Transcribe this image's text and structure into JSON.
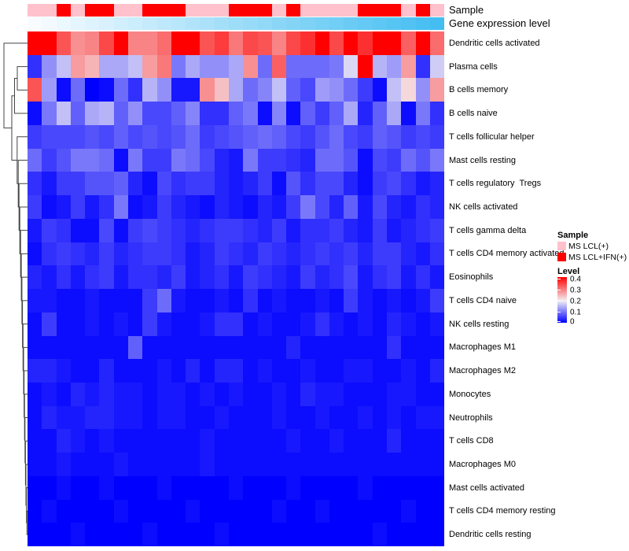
{
  "annotations": {
    "sample_label": "Sample",
    "gene_label": "Gene expression level"
  },
  "legend": {
    "sample": {
      "title": "Sample",
      "items": [
        {
          "label": "MS LCL(+)",
          "color": "#FFC1CC"
        },
        {
          "label": "MS LCL+IFN(+)",
          "color": "#FF0000"
        }
      ]
    },
    "level": {
      "title": "Level",
      "ticks": [
        "0.4",
        "0.3",
        "0.2",
        "0.1",
        "0"
      ]
    }
  },
  "colors": {
    "heatmap_low": "#0000FF",
    "heatmap_mid": "#F3F0F4",
    "heatmap_high": "#FF0000",
    "annotation_pink": "#FFC1CC",
    "annotation_red": "#FF0000",
    "gene_low": "#F8FCFF",
    "gene_high": "#44BEF1",
    "dendrogram": "#444444"
  },
  "chart_data": {
    "type": "heatmap",
    "title": "",
    "n_columns": 29,
    "rows": [
      "Dendritic cells activated",
      "Plasma cells",
      "B cells memory",
      "B cells naive",
      "T cells follicular helper",
      "Mast cells resting",
      "T cells regulatory  Tregs",
      "NK cells activated",
      "T cells gamma delta",
      "T cells CD4 memory activated",
      "Eosinophils",
      "T cells CD4 naive",
      "NK cells resting",
      "Macrophages M1",
      "Macrophages M2",
      "Monocytes",
      "Neutrophils",
      "T cells CD8",
      "Macrophages M0",
      "Mast cells activated",
      "T cells CD4 memory resting",
      "Dendritic cells resting"
    ],
    "column_annotations": {
      "sample_groups": {
        "0": "MS LCL(+)",
        "1": "MS LCL+IFN(+)"
      },
      "sample": [
        0,
        0,
        1,
        0,
        1,
        1,
        0,
        0,
        1,
        1,
        1,
        0,
        0,
        0,
        1,
        1,
        1,
        0,
        1,
        0,
        0,
        0,
        0,
        1,
        1,
        1,
        0,
        1,
        0
      ],
      "gene_expression_level": {
        "type": "continuous",
        "description": "increases linearly from left (low, near-white) to right (high, sky blue)",
        "range": [
          0,
          1
        ]
      }
    },
    "colormap": {
      "type": "diverging blue-white-red",
      "value_at_blue": 0,
      "value_at_white": 0.2,
      "value_at_red": 0.4,
      "legend_position": "right",
      "grid": false,
      "row_dendrogram": "left"
    },
    "values": [
      [
        0.44,
        0.42,
        0.33,
        0.28,
        0.29,
        0.34,
        0.43,
        0.29,
        0.29,
        0.31,
        0.44,
        0.42,
        0.33,
        0.35,
        0.3,
        0.34,
        0.33,
        0.29,
        0.34,
        0.36,
        0.42,
        0.34,
        0.42,
        0.36,
        0.43,
        0.42,
        0.32,
        0.44,
        0.31
      ],
      [
        0.04,
        0.12,
        0.16,
        0.27,
        0.25,
        0.14,
        0.14,
        0.16,
        0.27,
        0.3,
        0.1,
        0.14,
        0.12,
        0.12,
        0.14,
        0.28,
        0.09,
        0.32,
        0.09,
        0.09,
        0.09,
        0.1,
        0.18,
        0.43,
        0.15,
        0.13,
        0.27,
        0.04,
        0.17
      ],
      [
        0.33,
        0.13,
        0.01,
        0.09,
        0.0,
        0.01,
        0.09,
        0.04,
        0.15,
        0.12,
        0.02,
        0.02,
        0.28,
        0.24,
        0.14,
        0.09,
        0.11,
        0.16,
        0.08,
        0.06,
        0.13,
        0.12,
        0.09,
        0.05,
        0.01,
        0.16,
        0.22,
        0.12,
        0.27
      ],
      [
        0.01,
        0.1,
        0.16,
        0.08,
        0.14,
        0.15,
        0.08,
        0.12,
        0.06,
        0.06,
        0.08,
        0.11,
        0.04,
        0.04,
        0.08,
        0.1,
        0.01,
        0.11,
        0.01,
        0.08,
        0.05,
        0.08,
        0.14,
        0.03,
        0.08,
        0.14,
        0.01,
        0.1,
        0.04
      ],
      [
        0.05,
        0.06,
        0.06,
        0.06,
        0.07,
        0.06,
        0.08,
        0.06,
        0.07,
        0.06,
        0.07,
        0.09,
        0.05,
        0.06,
        0.07,
        0.08,
        0.09,
        0.08,
        0.06,
        0.05,
        0.07,
        0.09,
        0.06,
        0.05,
        0.08,
        0.07,
        0.05,
        0.06,
        0.05
      ],
      [
        0.09,
        0.05,
        0.07,
        0.1,
        0.1,
        0.09,
        0.01,
        0.1,
        0.05,
        0.05,
        0.1,
        0.09,
        0.06,
        0.03,
        0.02,
        0.1,
        0.05,
        0.05,
        0.04,
        0.03,
        0.09,
        0.09,
        0.07,
        0.01,
        0.06,
        0.05,
        0.09,
        0.07,
        0.1
      ],
      [
        0.04,
        0.02,
        0.05,
        0.05,
        0.07,
        0.07,
        0.08,
        0.03,
        0.01,
        0.06,
        0.04,
        0.05,
        0.05,
        0.03,
        0.02,
        0.03,
        0.05,
        0.01,
        0.07,
        0.04,
        0.06,
        0.06,
        0.03,
        0.01,
        0.05,
        0.06,
        0.04,
        0.02,
        0.03
      ],
      [
        0.05,
        0.01,
        0.02,
        0.05,
        0.02,
        0.04,
        0.1,
        0.01,
        0.02,
        0.05,
        0.03,
        0.02,
        0.01,
        0.03,
        0.02,
        0.01,
        0.03,
        0.02,
        0.05,
        0.1,
        0.06,
        0.03,
        0.08,
        0.02,
        0.06,
        0.03,
        0.02,
        0.04,
        0.03
      ],
      [
        0.02,
        0.05,
        0.04,
        0.01,
        0.01,
        0.06,
        0.01,
        0.05,
        0.06,
        0.05,
        0.04,
        0.03,
        0.04,
        0.05,
        0.05,
        0.04,
        0.03,
        0.05,
        0.02,
        0.04,
        0.04,
        0.05,
        0.03,
        0.02,
        0.05,
        0.02,
        0.03,
        0.04,
        0.05
      ],
      [
        0.01,
        0.04,
        0.05,
        0.04,
        0.03,
        0.05,
        0.03,
        0.04,
        0.05,
        0.05,
        0.04,
        0.02,
        0.03,
        0.05,
        0.04,
        0.03,
        0.05,
        0.04,
        0.03,
        0.04,
        0.05,
        0.04,
        0.05,
        0.03,
        0.05,
        0.05,
        0.03,
        0.02,
        0.04
      ],
      [
        0.03,
        0.02,
        0.04,
        0.02,
        0.04,
        0.05,
        0.02,
        0.04,
        0.04,
        0.03,
        0.05,
        0.02,
        0.03,
        0.04,
        0.02,
        0.05,
        0.04,
        0.03,
        0.02,
        0.05,
        0.03,
        0.04,
        0.06,
        0.02,
        0.04,
        0.05,
        0.02,
        0.04,
        0.02
      ],
      [
        0.02,
        0.02,
        0.01,
        0.01,
        0.02,
        0.01,
        0.01,
        0.01,
        0.05,
        0.09,
        0.02,
        0.01,
        0.01,
        0.02,
        0.01,
        0.04,
        0.01,
        0.02,
        0.01,
        0.01,
        0.02,
        0.01,
        0.05,
        0.02,
        0.01,
        0.02,
        0.01,
        0.02,
        0.05
      ],
      [
        0.01,
        0.05,
        0.01,
        0.01,
        0.02,
        0.01,
        0.02,
        0.01,
        0.05,
        0.02,
        0.01,
        0.01,
        0.02,
        0.04,
        0.04,
        0.01,
        0.02,
        0.01,
        0.01,
        0.02,
        0.04,
        0.02,
        0.01,
        0.02,
        0.01,
        0.03,
        0.02,
        0.01,
        0.02
      ],
      [
        0.01,
        0.01,
        0.01,
        0.01,
        0.01,
        0.01,
        0.01,
        0.08,
        0.01,
        0.01,
        0.01,
        0.01,
        0.01,
        0.01,
        0.01,
        0.01,
        0.01,
        0.01,
        0.03,
        0.01,
        0.01,
        0.01,
        0.01,
        0.01,
        0.01,
        0.04,
        0.01,
        0.01,
        0.01
      ],
      [
        0.03,
        0.03,
        0.02,
        0.01,
        0.01,
        0.03,
        0.01,
        0.01,
        0.01,
        0.02,
        0.01,
        0.03,
        0.01,
        0.03,
        0.03,
        0.01,
        0.02,
        0.01,
        0.01,
        0.02,
        0.01,
        0.01,
        0.02,
        0.02,
        0.01,
        0.01,
        0.02,
        0.01,
        0.03
      ],
      [
        0.01,
        0.02,
        0.01,
        0.03,
        0.02,
        0.03,
        0.02,
        0.02,
        0.01,
        0.02,
        0.02,
        0.01,
        0.02,
        0.01,
        0.02,
        0.01,
        0.01,
        0.02,
        0.01,
        0.03,
        0.02,
        0.02,
        0.01,
        0.01,
        0.01,
        0.02,
        0.02,
        0.01,
        0.01
      ],
      [
        0.01,
        0.03,
        0.02,
        0.02,
        0.03,
        0.03,
        0.02,
        0.02,
        0.01,
        0.02,
        0.02,
        0.01,
        0.01,
        0.02,
        0.01,
        0.01,
        0.01,
        0.02,
        0.01,
        0.01,
        0.02,
        0.01,
        0.01,
        0.02,
        0.01,
        0.02,
        0.01,
        0.02,
        0.02
      ],
      [
        0.01,
        0.01,
        0.03,
        0.02,
        0.01,
        0.02,
        0.01,
        0.01,
        0.01,
        0.01,
        0.01,
        0.01,
        0.02,
        0.01,
        0.01,
        0.01,
        0.01,
        0.01,
        0.02,
        0.01,
        0.01,
        0.02,
        0.01,
        0.01,
        0.01,
        0.03,
        0.01,
        0.01,
        0.01
      ],
      [
        0.01,
        0.01,
        0.02,
        0.01,
        0.01,
        0.01,
        0.02,
        0.01,
        0.01,
        0.01,
        0.01,
        0.01,
        0.02,
        0.01,
        0.01,
        0.01,
        0.01,
        0.01,
        0.01,
        0.01,
        0.01,
        0.01,
        0.01,
        0.01,
        0.01,
        0.01,
        0.01,
        0.01,
        0.01
      ],
      [
        0.0,
        0.0,
        0.01,
        0.0,
        0.0,
        0.01,
        0.0,
        0.0,
        0.0,
        0.01,
        0.0,
        0.0,
        0.0,
        0.0,
        0.01,
        0.0,
        0.0,
        0.0,
        0.01,
        0.0,
        0.0,
        0.0,
        0.0,
        0.01,
        0.0,
        0.0,
        0.0,
        0.0,
        0.0
      ],
      [
        0.0,
        0.01,
        0.0,
        0.0,
        0.0,
        0.0,
        0.01,
        0.0,
        0.0,
        0.0,
        0.0,
        0.01,
        0.0,
        0.0,
        0.0,
        0.0,
        0.0,
        0.01,
        0.0,
        0.0,
        0.01,
        0.0,
        0.0,
        0.0,
        0.0,
        0.0,
        0.01,
        0.0,
        0.0
      ],
      [
        0.0,
        0.0,
        0.0,
        0.01,
        0.0,
        0.0,
        0.0,
        0.0,
        0.01,
        0.0,
        0.0,
        0.0,
        0.0,
        0.01,
        0.0,
        0.0,
        0.0,
        0.0,
        0.0,
        0.0,
        0.0,
        0.0,
        0.0,
        0.0,
        0.01,
        0.0,
        0.0,
        0.0,
        0.0
      ]
    ]
  }
}
